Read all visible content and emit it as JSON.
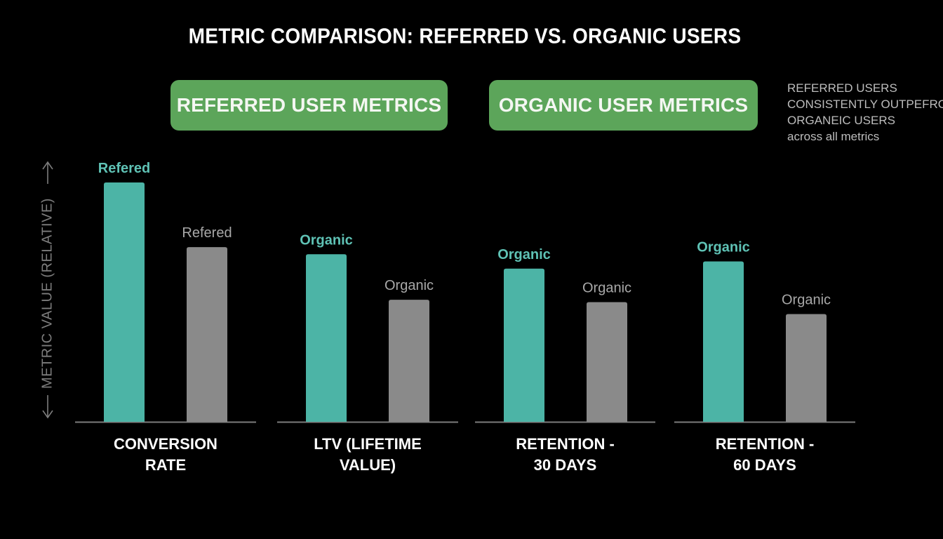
{
  "colors": {
    "background": "#000000",
    "referred_bar": "#4cb4a6",
    "organic_bar": "#8a8a8a",
    "pill": "#5ca55a",
    "axis": "#7d7d7d",
    "referred_label": "#5fc2b5",
    "organic_label": "#a8a8a8"
  },
  "pills": {
    "referred": "REFERRED USER METRICS",
    "organic": "ORGANIC USER METRICS"
  },
  "note": {
    "lines": [
      "REFERRED USERS",
      "CONSISTENTLY OUTPEFROM",
      "ORGANEIC USERS",
      "across all metrics"
    ]
  },
  "chart_data": {
    "type": "bar",
    "title": "METRIC COMPARISON: REFERRED VS. ORGANIC USERS",
    "ylabel": "METRIC VALUE (RELATIVE)",
    "xlabel": "",
    "ylim": [
      0,
      100
    ],
    "categories": [
      [
        "CONVERSION",
        "RATE"
      ],
      [
        "LTV (LIFETIME",
        "VALUE)"
      ],
      [
        "RETENTION -",
        "30 DAYS"
      ],
      [
        "RETENTION -",
        "60 DAYS"
      ]
    ],
    "series": [
      {
        "values": [
          100,
          70,
          64,
          67
        ],
        "labels": [
          "Refered",
          "Organic",
          "Organic",
          "Organic"
        ]
      },
      {
        "values": [
          73,
          51,
          50,
          45
        ],
        "labels": [
          "Refered",
          "Organic",
          "Organic",
          "Organic"
        ]
      }
    ],
    "axis_arrows": [
      "↑",
      "↓"
    ]
  }
}
